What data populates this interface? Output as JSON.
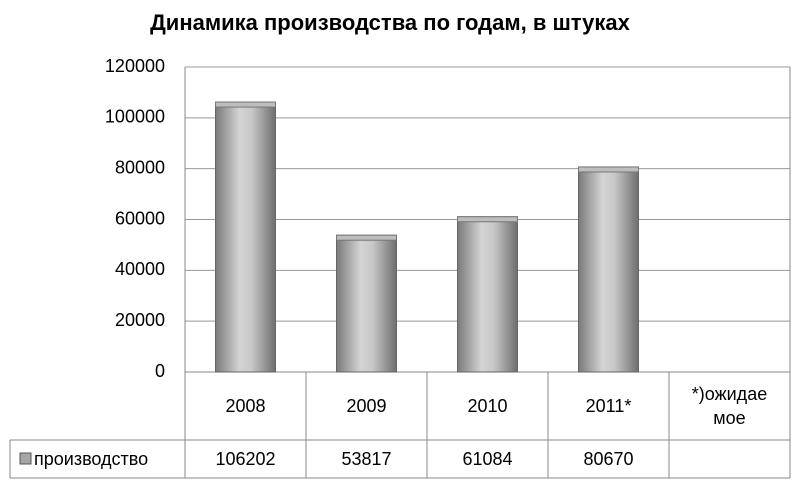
{
  "chart_data": {
    "type": "bar",
    "title": "Динамика производства по годам, в штуках",
    "categories": [
      "2008",
      "2009",
      "2010",
      "2011*",
      "*)ожидаемое"
    ],
    "series": [
      {
        "name": "производство",
        "color": "#a6a6a6",
        "values": [
          106202,
          53817,
          61084,
          80670,
          null
        ]
      }
    ],
    "ylim": [
      0,
      120000
    ],
    "yticks": [
      0,
      20000,
      40000,
      60000,
      80000,
      100000,
      120000
    ],
    "grid": true,
    "data_table": true
  }
}
